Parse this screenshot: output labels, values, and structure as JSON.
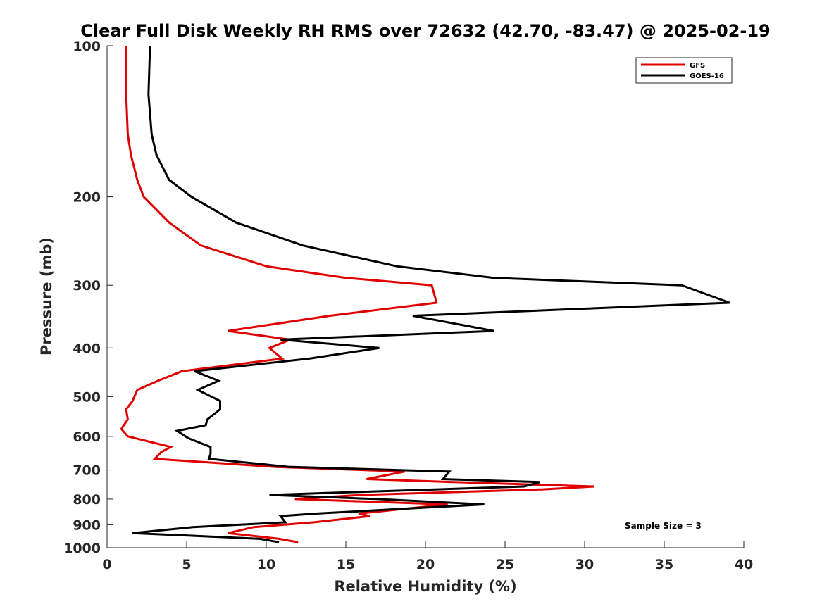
{
  "chart_data": {
    "type": "line",
    "title": "Clear Full Disk Weekly RH RMS over 72632 (42.70, -83.47) @ 2025-02-19",
    "xlabel": "Relative Humidity (%)",
    "ylabel": "Pressure (mb)",
    "xlim": [
      0,
      40
    ],
    "ylim": [
      1000,
      100
    ],
    "y_scale": "log",
    "x_ticks": [
      0,
      5,
      10,
      15,
      20,
      25,
      30,
      35,
      40
    ],
    "y_ticks": [
      100,
      200,
      300,
      400,
      500,
      600,
      700,
      800,
      900,
      1000
    ],
    "grid": false,
    "legend_position": "top-right",
    "annotation": "Sample Size = 3",
    "series": [
      {
        "name": "GFS",
        "color": "#e00000",
        "points": [
          [
            1.2,
            100
          ],
          [
            1.2,
            125
          ],
          [
            1.3,
            150
          ],
          [
            1.5,
            165
          ],
          [
            1.9,
            185
          ],
          [
            2.3,
            200
          ],
          [
            3.9,
            225
          ],
          [
            5.9,
            250
          ],
          [
            10.0,
            275
          ],
          [
            15.0,
            290
          ],
          [
            20.4,
            300
          ],
          [
            20.7,
            325
          ],
          [
            14.0,
            345
          ],
          [
            7.6,
            370
          ],
          [
            11.5,
            385
          ],
          [
            10.2,
            400
          ],
          [
            11.0,
            420
          ],
          [
            4.7,
            445
          ],
          [
            3.2,
            465
          ],
          [
            1.9,
            485
          ],
          [
            1.6,
            510
          ],
          [
            1.2,
            530
          ],
          [
            1.3,
            555
          ],
          [
            0.9,
            580
          ],
          [
            1.3,
            600
          ],
          [
            4.0,
            630
          ],
          [
            3.4,
            645
          ],
          [
            3.0,
            665
          ],
          [
            10.5,
            690
          ],
          [
            18.7,
            705
          ],
          [
            16.3,
            730
          ],
          [
            21.8,
            740
          ],
          [
            30.6,
            755
          ],
          [
            27.4,
            765
          ],
          [
            16.0,
            785
          ],
          [
            11.8,
            800
          ],
          [
            21.4,
            820
          ],
          [
            15.8,
            855
          ],
          [
            16.5,
            865
          ],
          [
            13.0,
            890
          ],
          [
            9.2,
            910
          ],
          [
            7.6,
            935
          ],
          [
            10.8,
            960
          ],
          [
            12.0,
            975
          ]
        ]
      },
      {
        "name": "GOES-16",
        "color": "#000000",
        "points": [
          [
            2.7,
            100
          ],
          [
            2.6,
            125
          ],
          [
            2.8,
            150
          ],
          [
            3.1,
            165
          ],
          [
            3.9,
            185
          ],
          [
            5.3,
            200
          ],
          [
            8.1,
            225
          ],
          [
            12.3,
            250
          ],
          [
            18.2,
            275
          ],
          [
            24.3,
            290
          ],
          [
            36.1,
            300
          ],
          [
            39.1,
            325
          ],
          [
            19.2,
            345
          ],
          [
            24.3,
            370
          ],
          [
            10.9,
            385
          ],
          [
            17.1,
            400
          ],
          [
            12.7,
            420
          ],
          [
            5.5,
            445
          ],
          [
            7.0,
            465
          ],
          [
            5.7,
            485
          ],
          [
            7.1,
            510
          ],
          [
            7.1,
            530
          ],
          [
            6.3,
            555
          ],
          [
            6.2,
            570
          ],
          [
            4.4,
            585
          ],
          [
            5.1,
            605
          ],
          [
            6.5,
            630
          ],
          [
            6.5,
            650
          ],
          [
            6.4,
            665
          ],
          [
            11.4,
            690
          ],
          [
            21.5,
            705
          ],
          [
            21.1,
            730
          ],
          [
            27.2,
            740
          ],
          [
            26.2,
            755
          ],
          [
            10.2,
            785
          ],
          [
            17.0,
            800
          ],
          [
            23.7,
            820
          ],
          [
            13.1,
            855
          ],
          [
            10.9,
            865
          ],
          [
            11.2,
            890
          ],
          [
            5.4,
            910
          ],
          [
            1.6,
            935
          ],
          [
            9.6,
            960
          ],
          [
            10.8,
            975
          ]
        ]
      }
    ]
  }
}
